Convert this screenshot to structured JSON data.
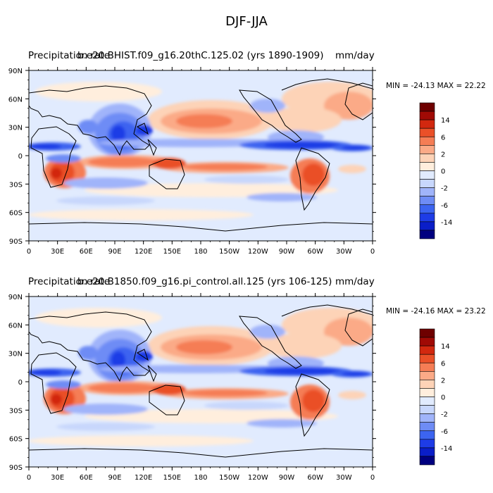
{
  "title": "DJF-JJA",
  "colors": {
    "levels": [
      "#000080",
      "#0a1ec8",
      "#1e3ce6",
      "#3c64f0",
      "#6e8cf5",
      "#a0b4fa",
      "#c8d7fc",
      "#e1ebfe",
      "#ffeedd",
      "#fdd3b7",
      "#fbaa87",
      "#f57d55",
      "#ea5028",
      "#d2280f",
      "#a00a05",
      "#6e0000"
    ],
    "coast": "#000000"
  },
  "panels": [
    {
      "left_title": "Precipitation rate",
      "dataset": "b.e20.BHIST.f09_g16.20thC.125.02 (yrs 1890-1909)",
      "units": "mm/day",
      "minmax": "MIN = -24.13 MAX =  22.22"
    },
    {
      "left_title": "Precipitation rate",
      "dataset": "b.e20.B1850.f09_g16.pi_control.all.125 (yrs 106-125)",
      "units": "mm/day",
      "minmax": "MIN = -24.16 MAX =  23.22"
    }
  ],
  "axes": {
    "lat_labels": [
      "90N",
      "60N",
      "30N",
      "0",
      "30S",
      "60S",
      "90S"
    ],
    "lon_labels": [
      "0",
      "30E",
      "60E",
      "90E",
      "120E",
      "150E",
      "180",
      "150W",
      "120W",
      "90W",
      "60W",
      "30W",
      "0"
    ]
  },
  "colorbar": {
    "labels": [
      "14",
      "6",
      "2",
      "0",
      "-2",
      "-6",
      "-14"
    ]
  }
}
